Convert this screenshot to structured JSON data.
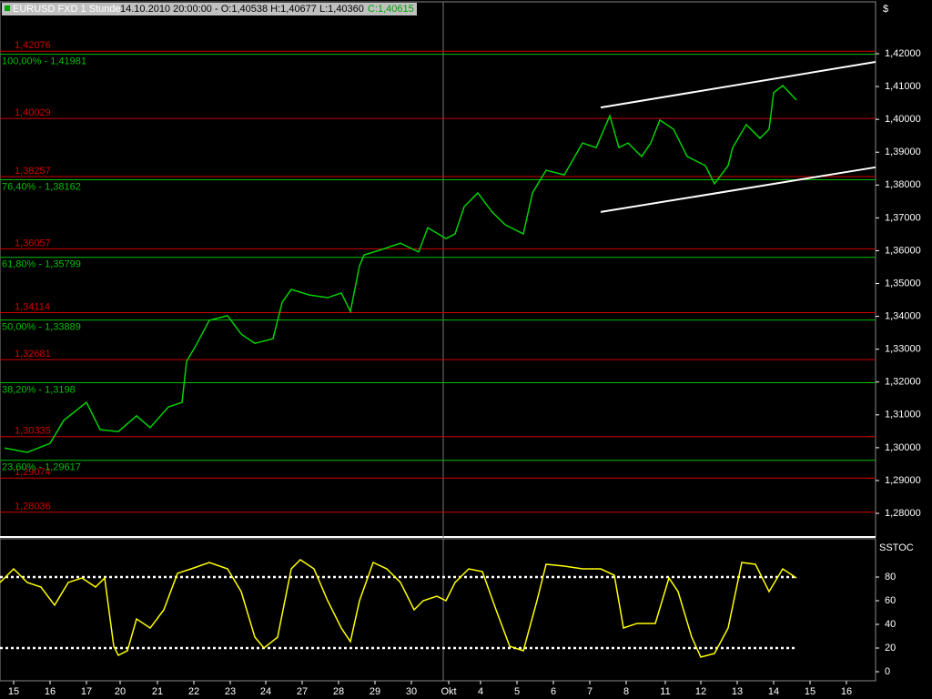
{
  "chart_data": {
    "type": "line",
    "symbol": "EURUSD FXD 1 Stunde",
    "datetime": "14.10.2010 20:00:00",
    "ohlc": "- O:1,40538 H:1,40677 L:1,40360",
    "close": "C:1,40615",
    "currency": "$",
    "xlim": [
      -0.375,
      23.675
    ],
    "xticks": [
      {
        "value": 0,
        "label": "15"
      },
      {
        "value": 1,
        "label": "16"
      },
      {
        "value": 2,
        "label": "17"
      },
      {
        "value": 2.925,
        "label": "20"
      },
      {
        "value": 3.95,
        "label": "21"
      },
      {
        "value": 4.95,
        "label": "22"
      },
      {
        "value": 5.95,
        "label": "23"
      },
      {
        "value": 6.925,
        "label": "24"
      },
      {
        "value": 7.925,
        "label": "27"
      },
      {
        "value": 8.925,
        "label": "28"
      },
      {
        "value": 9.925,
        "label": "29"
      },
      {
        "value": 10.925,
        "label": "30"
      },
      {
        "value": 11.95,
        "label": "Okt"
      },
      {
        "value": 12.825,
        "label": "4"
      },
      {
        "value": 13.825,
        "label": "5"
      },
      {
        "value": 14.825,
        "label": "6"
      },
      {
        "value": 15.825,
        "label": "7"
      },
      {
        "value": 16.825,
        "label": "8"
      },
      {
        "value": 17.9,
        "label": "11"
      },
      {
        "value": 18.875,
        "label": "12"
      },
      {
        "value": 19.875,
        "label": "13"
      },
      {
        "value": 20.875,
        "label": "14"
      },
      {
        "value": 21.875,
        "label": "15"
      },
      {
        "value": 22.875,
        "label": "16"
      }
    ],
    "ylim": [
      1.2728,
      1.4358
    ],
    "yticks": [
      {
        "value": 1.42,
        "label": "1,42000"
      },
      {
        "value": 1.41,
        "label": "1,41000"
      },
      {
        "value": 1.4,
        "label": "1,40000"
      },
      {
        "value": 1.39,
        "label": "1,39000"
      },
      {
        "value": 1.38,
        "label": "1,38000"
      },
      {
        "value": 1.37,
        "label": "1,37000"
      },
      {
        "value": 1.36,
        "label": "1,36000"
      },
      {
        "value": 1.35,
        "label": "1,35000"
      },
      {
        "value": 1.34,
        "label": "1,34000"
      },
      {
        "value": 1.33,
        "label": "1,33000"
      },
      {
        "value": 1.32,
        "label": "1,32000"
      },
      {
        "value": 1.31,
        "label": "1,31000"
      },
      {
        "value": 1.3,
        "label": "1,30000"
      },
      {
        "value": 1.29,
        "label": "1,29000"
      },
      {
        "value": 1.28,
        "label": "1,28000"
      }
    ],
    "separator": 11.8,
    "series": [
      {
        "color": "#00d000",
        "x": [
          -0.25,
          0.375,
          1,
          1.375,
          2,
          2.375,
          2.875,
          3.375,
          3.75,
          4.25,
          4.625,
          4.75,
          5,
          5.375,
          5.875,
          6.25,
          6.625,
          7.125,
          7.375,
          7.625,
          8.125,
          8.625,
          9,
          9.25,
          9.5,
          9.625,
          10.125,
          10.625,
          11.125,
          11.375,
          11.875,
          12.125,
          12.375,
          12.75,
          13.125,
          13.5,
          14,
          14.25,
          14.625,
          15.125,
          15.625,
          16,
          16.375,
          16.625,
          16.875,
          17.25,
          17.5,
          17.75,
          18.125,
          18.5,
          19,
          19.25,
          19.625,
          19.75,
          20.125,
          20.5,
          20.75,
          20.875,
          21.125,
          21.5
        ],
        "values": [
          1.2999,
          1.2986,
          1.3013,
          1.3083,
          1.3138,
          1.3055,
          1.3049,
          1.3097,
          1.3061,
          1.3124,
          1.3138,
          1.3263,
          1.331,
          1.3388,
          1.3402,
          1.3346,
          1.3318,
          1.3332,
          1.3443,
          1.3482,
          1.3465,
          1.3457,
          1.3471,
          1.3415,
          1.3554,
          1.3587,
          1.3604,
          1.3623,
          1.3596,
          1.367,
          1.3637,
          1.3651,
          1.3734,
          1.3776,
          1.372,
          1.3679,
          1.3651,
          1.3776,
          1.3845,
          1.3831,
          1.3928,
          1.3914,
          1.4011,
          1.3914,
          1.3928,
          1.3887,
          1.3928,
          1.3998,
          1.397,
          1.3887,
          1.3859,
          1.3804,
          1.3859,
          1.3914,
          1.3984,
          1.3942,
          1.397,
          1.4081,
          1.4103,
          1.4059
        ]
      }
    ],
    "levels": [
      {
        "value": 1.42076,
        "label": "1,42076",
        "color": "#d00000"
      },
      {
        "value": 1.40029,
        "label": "1,40029",
        "color": "#d00000"
      },
      {
        "value": 1.38257,
        "label": "1,38257",
        "color": "#d00000"
      },
      {
        "value": 1.36057,
        "label": "1,36057",
        "color": "#d00000"
      },
      {
        "value": 1.34114,
        "label": "1,34114",
        "color": "#d00000"
      },
      {
        "value": 1.32681,
        "label": "1,32681",
        "color": "#d00000"
      },
      {
        "value": 1.30335,
        "label": "1,30335",
        "color": "#d00000"
      },
      {
        "value": 1.29074,
        "label": "1,29074",
        "color": "#d00000"
      },
      {
        "value": 1.28036,
        "label": "1,28036",
        "color": "#d00000"
      },
      {
        "value": 1.41981,
        "label": "100,00% - 1,41981",
        "color": "#00c000"
      },
      {
        "value": 1.38162,
        "label": "76,40% - 1,38162",
        "color": "#00c000"
      },
      {
        "value": 1.35799,
        "label": "61,80% - 1,35799",
        "color": "#00c000"
      },
      {
        "value": 1.33889,
        "label": "50,00% - 1,33889",
        "color": "#00c000"
      },
      {
        "value": 1.3198,
        "label": "38,20% - 1,3198",
        "color": "#00c000"
      },
      {
        "value": 1.29617,
        "label": "23,60% - 1,29617",
        "color": "#00c000"
      }
    ],
    "trendlines": [
      {
        "x": [
          16.125,
          23.675
        ],
        "y": [
          1.4036,
          1.4175
        ]
      },
      {
        "x": [
          16.125,
          23.675
        ],
        "y": [
          1.3718,
          1.3854
        ]
      }
    ],
    "indicator": {
      "type": "line",
      "name": "SSTOC",
      "ylim": [
        -7.7,
        112.3
      ],
      "yticks": [
        0,
        20,
        40,
        60,
        80
      ],
      "levels": [
        80,
        20
      ],
      "color": "#ffff00",
      "x": [
        -0.375,
        0,
        0.375,
        0.75,
        1.125,
        1.5,
        1.875,
        2.25,
        2.5,
        2.75,
        2.875,
        3.125,
        3.375,
        3.75,
        4.125,
        4.5,
        4.875,
        5.375,
        5.875,
        6.25,
        6.625,
        6.875,
        7.25,
        7.625,
        7.875,
        8.25,
        8.625,
        9,
        9.25,
        9.5,
        9.875,
        10.25,
        10.625,
        11,
        11.25,
        11.625,
        11.875,
        12.125,
        12.5,
        12.875,
        13.25,
        13.625,
        14,
        14.375,
        14.625,
        15.125,
        15.625,
        16.125,
        16.5,
        16.75,
        17.125,
        17.625,
        18,
        18.25,
        18.625,
        18.875,
        19.25,
        19.625,
        20,
        20.375,
        20.75,
        21.125,
        21.5
      ],
      "values": [
        75.4,
        86.9,
        75.4,
        71.5,
        56.2,
        75.4,
        79.2,
        71.5,
        79.2,
        21.5,
        13.8,
        17.7,
        44.6,
        36.9,
        52.3,
        83.1,
        86.9,
        92.3,
        86.9,
        67.7,
        29.2,
        20,
        29.2,
        86.9,
        94.6,
        86.9,
        60,
        36.9,
        25.4,
        60,
        92.3,
        86.9,
        75.4,
        52.3,
        60,
        63.8,
        60,
        75.4,
        86.9,
        84.6,
        52.3,
        21.5,
        17.7,
        60,
        90.8,
        89.2,
        86.9,
        86.9,
        81.5,
        36.9,
        40.8,
        40.8,
        79.2,
        67.7,
        29.2,
        12.3,
        15.4,
        36.9,
        92.3,
        90.8,
        67.7,
        86.9,
        79.2
      ]
    }
  }
}
